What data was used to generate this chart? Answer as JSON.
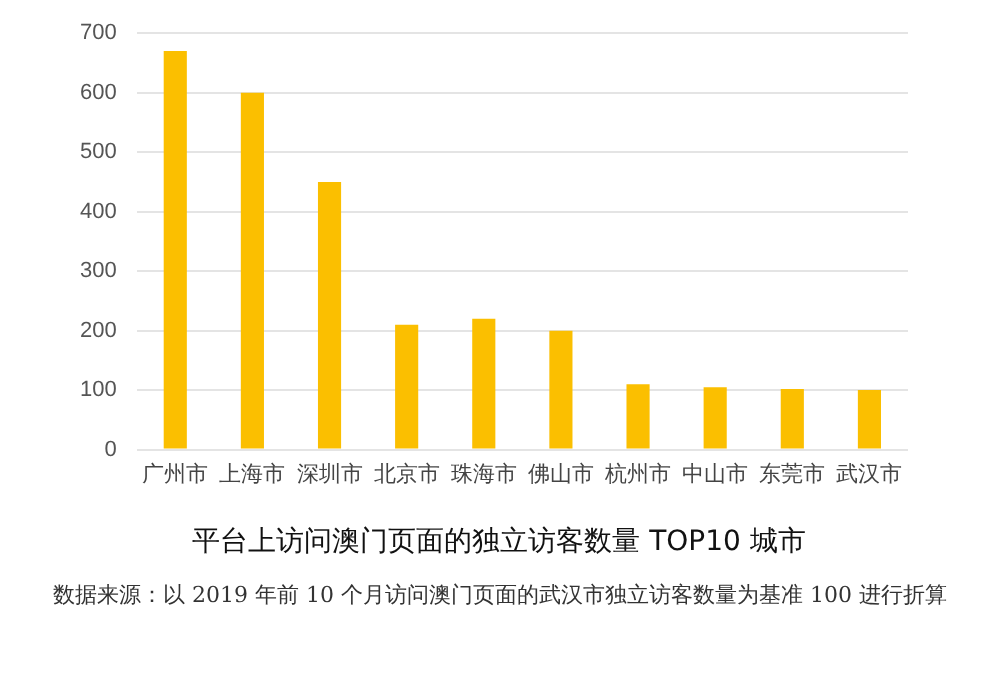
{
  "chart_data": {
    "type": "bar",
    "title": "平台上访问澳门页面的独立访客数量 TOP10 城市",
    "categories": [
      "广州市",
      "上海市",
      "深圳市",
      "北京市",
      "珠海市",
      "佛山市",
      "杭州市",
      "中山市",
      "东莞市",
      "武汉市"
    ],
    "values": [
      670,
      600,
      450,
      210,
      220,
      200,
      110,
      105,
      102,
      100
    ],
    "color": "#fbbf00",
    "ylim": [
      0,
      700
    ],
    "yticks": [
      0,
      100,
      200,
      300,
      400,
      500,
      600,
      700
    ],
    "grid": "y",
    "annotations": [
      "数据来源：以 2019 年前 10 个月访问澳门页面的武汉市独立访客数量为基准 100 进行折算"
    ]
  }
}
